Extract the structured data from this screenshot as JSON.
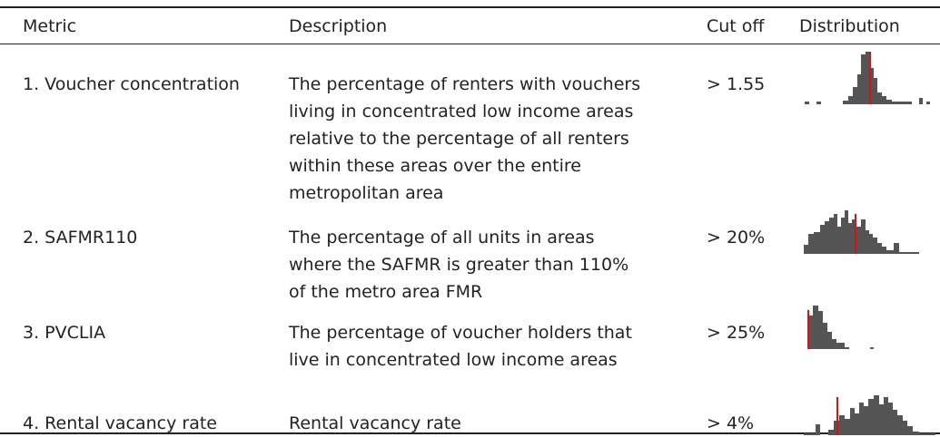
{
  "table": {
    "header": [
      "Metric",
      "Description",
      "Cut off",
      "Distribution"
    ],
    "rows": [
      {
        "metric": "1. Voucher concentration",
        "description": [
          "The percentage of renters with vouchers",
          "living in concentrated low income areas",
          "relative to the percentage of all renters",
          "within these areas over the entire",
          "metropolitan area"
        ],
        "cutoff": "> 1.55"
      },
      {
        "metric": "2. SAFMR110",
        "description": [
          "The percentage of all units in areas",
          "where the SAFMR is greater than 110%",
          "of the metro area FMR"
        ],
        "cutoff": "> 20%"
      },
      {
        "metric": "3. PVCLIA",
        "description": [
          "The percentage of voucher holders that",
          "live in concentrated low income areas"
        ],
        "cutoff": "> 25%"
      },
      {
        "metric": "4. Rental vacancy rate",
        "description": [
          "Rental vacancy rate"
        ],
        "cutoff": "> 4%"
      }
    ]
  }
}
